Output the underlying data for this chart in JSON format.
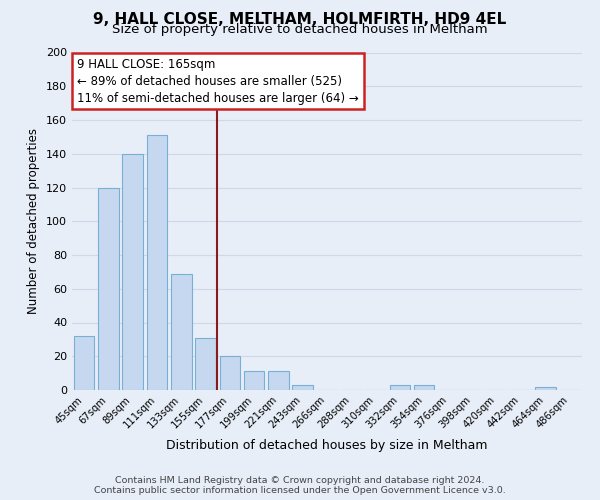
{
  "title": "9, HALL CLOSE, MELTHAM, HOLMFIRTH, HD9 4EL",
  "subtitle": "Size of property relative to detached houses in Meltham",
  "xlabel": "Distribution of detached houses by size in Meltham",
  "ylabel": "Number of detached properties",
  "bar_labels": [
    "45sqm",
    "67sqm",
    "89sqm",
    "111sqm",
    "133sqm",
    "155sqm",
    "177sqm",
    "199sqm",
    "221sqm",
    "243sqm",
    "266sqm",
    "288sqm",
    "310sqm",
    "332sqm",
    "354sqm",
    "376sqm",
    "398sqm",
    "420sqm",
    "442sqm",
    "464sqm",
    "486sqm"
  ],
  "bar_values": [
    32,
    120,
    140,
    151,
    69,
    31,
    20,
    11,
    11,
    3,
    0,
    0,
    0,
    3,
    3,
    0,
    0,
    0,
    0,
    2,
    0
  ],
  "bar_color": "#c5d8f0",
  "bar_edge_color": "#7aafd4",
  "property_label": "9 HALL CLOSE: 165sqm",
  "annotation_line1": "← 89% of detached houses are smaller (525)",
  "annotation_line2": "11% of semi-detached houses are larger (64) →",
  "vline_color": "#8b1a1a",
  "ylim": [
    0,
    200
  ],
  "yticks": [
    0,
    20,
    40,
    60,
    80,
    100,
    120,
    140,
    160,
    180,
    200
  ],
  "footer_line1": "Contains HM Land Registry data © Crown copyright and database right 2024.",
  "footer_line2": "Contains public sector information licensed under the Open Government Licence v3.0.",
  "bg_color": "#e8eef8",
  "plot_bg_color": "#e8eef8",
  "grid_color": "#d0d8e8",
  "title_fontsize": 11,
  "subtitle_fontsize": 9.5,
  "footer_fontsize": 6.8
}
